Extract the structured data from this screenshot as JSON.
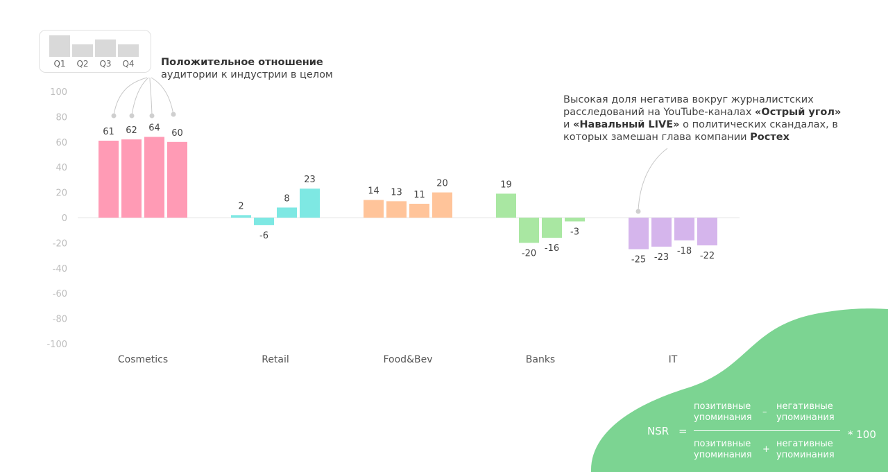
{
  "chart_data": {
    "type": "bar",
    "categories": [
      "Cosmetics",
      "Retail",
      "Food&Bev",
      "Banks",
      "IT"
    ],
    "series": [
      {
        "name": "Q1",
        "values": [
          61,
          2,
          14,
          19,
          -25
        ]
      },
      {
        "name": "Q2",
        "values": [
          62,
          -6,
          13,
          -20,
          -23
        ]
      },
      {
        "name": "Q3",
        "values": [
          64,
          8,
          11,
          -16,
          -18
        ]
      },
      {
        "name": "Q4",
        "values": [
          60,
          23,
          20,
          -3,
          -22
        ]
      }
    ],
    "ylim": [
      -100,
      100
    ],
    "yticks": [
      100,
      80,
      60,
      40,
      20,
      0,
      -20,
      -40,
      -60,
      -80,
      -100
    ],
    "category_colors": [
      "#ff9bb5",
      "#7ee8e3",
      "#ffc49a",
      "#a9e7a2",
      "#d5b5ec"
    ],
    "grid": false,
    "legend_position": "top-left"
  },
  "legend": {
    "labels": [
      "Q1",
      "Q2",
      "Q3",
      "Q4"
    ],
    "sample_values": [
      61,
      62,
      64,
      60
    ]
  },
  "annotations": {
    "positive": {
      "bold": "Положительное отношение",
      "text": "аудитории к индустрии в целом"
    },
    "negative": {
      "line1": "Высокая доля негатива вокруг журналистских",
      "line2_prefix": "расследований на YouTube-каналах ",
      "line2_bold": "«Острый угол»",
      "line3_prefix": "и ",
      "line3_bold": "«Навальный LIVE»",
      "line3_suffix": " о политических скандалах, в",
      "line4_prefix": "которых замешан глава компании ",
      "line4_bold": "Ростех"
    }
  },
  "formula": {
    "lhs": "NSR",
    "equals": "=",
    "num_left_1": "позитивные",
    "num_left_2": "упоминания",
    "num_op": "–",
    "num_right_1": "негативные",
    "num_right_2": "упоминания",
    "den_left_1": "позитивные",
    "den_left_2": "упоминания",
    "den_op": "+",
    "den_right_1": "негативные",
    "den_right_2": "упоминания",
    "multiplier": "* 100"
  },
  "colors": {
    "blob": "#7cd492",
    "legend_bar": "#d9d9d9",
    "leader": "#c8c8c8"
  }
}
